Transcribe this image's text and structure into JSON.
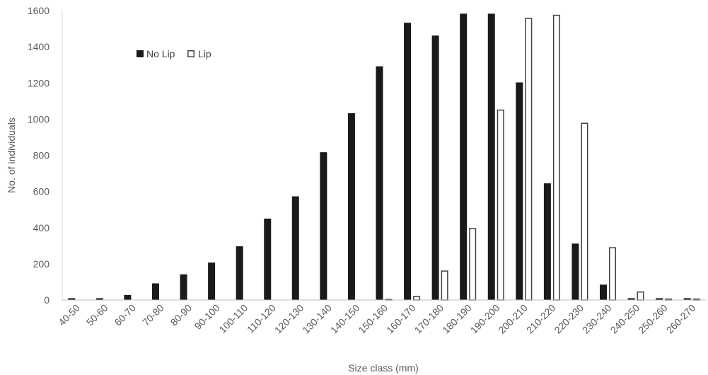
{
  "chart_data": {
    "type": "bar",
    "title": "",
    "xlabel": "Size class (mm)",
    "ylabel": "No. of individuals",
    "ylim": [
      0,
      1600
    ],
    "yticks": [
      0,
      200,
      400,
      600,
      800,
      1000,
      1200,
      1400,
      1600
    ],
    "grid": false,
    "legend_position": "top-left",
    "categories": [
      "40-50",
      "50-60",
      "60-70",
      "70-80",
      "80-90",
      "90-100",
      "100-110",
      "110-120",
      "120-130",
      "130-140",
      "140-150",
      "150-160",
      "160-170",
      "170-180",
      "180-190",
      "190-200",
      "200-210",
      "210-220",
      "220-230",
      "230-240",
      "240-250",
      "250-260",
      "260-270"
    ],
    "series": [
      {
        "name": "No Lip",
        "fill": "#1a1a1a",
        "stroke": "#1a1a1a",
        "values": [
          10,
          10,
          28,
          92,
          142,
          207,
          297,
          450,
          573,
          817,
          1033,
          1292,
          1533,
          1462,
          1583,
          1583,
          1203,
          645,
          312,
          85,
          10,
          10,
          10
        ]
      },
      {
        "name": "Lip",
        "fill": "#ffffff",
        "stroke": "#404040",
        "values": [
          0,
          0,
          0,
          0,
          0,
          0,
          0,
          0,
          0,
          0,
          0,
          6,
          22,
          163,
          398,
          1053,
          1560,
          1577,
          980,
          292,
          47,
          8,
          8
        ]
      }
    ]
  }
}
